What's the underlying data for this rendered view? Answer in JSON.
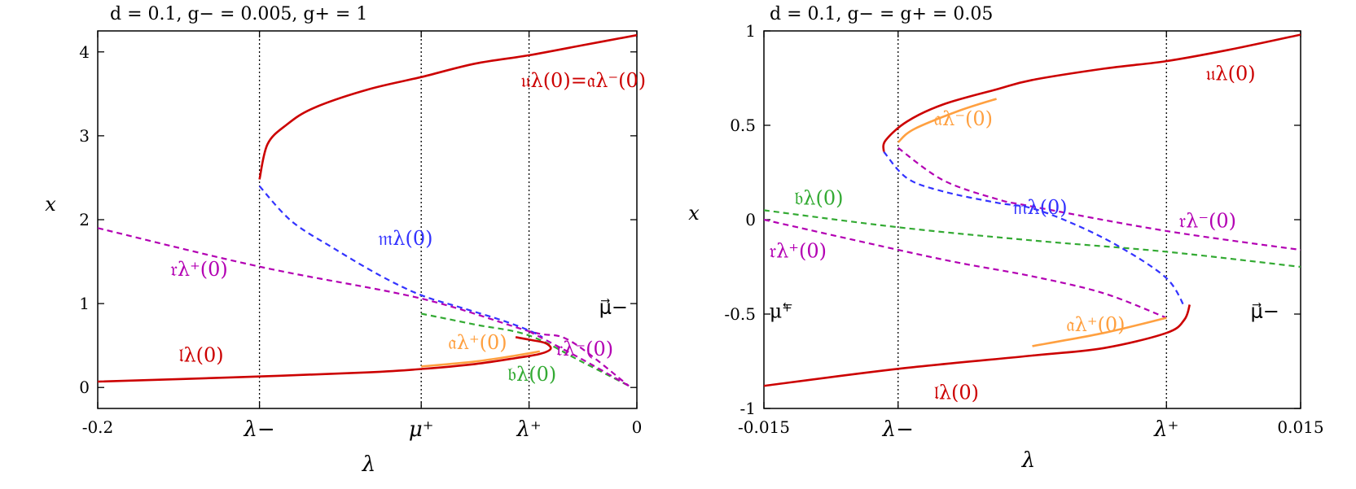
{
  "chart_data": [
    {
      "type": "line",
      "title": "d = 0.1, g− = 0.005, g+ = 1",
      "xlabel": "λ",
      "ylabel": "x",
      "xlim": [
        -0.2,
        0
      ],
      "ylim": [
        -0.25,
        4.25
      ],
      "x_ticks": [
        {
          "value": -0.2,
          "label": "-0.2"
        },
        {
          "value": -0.14,
          "label": "λ−"
        },
        {
          "value": -0.08,
          "label": "μ⁺"
        },
        {
          "value": -0.04,
          "label": "λ⁺"
        },
        {
          "value": 0,
          "label": "0"
        }
      ],
      "y_ticks": [
        {
          "value": 0,
          "label": "0"
        },
        {
          "value": 1,
          "label": "1"
        },
        {
          "value": 2,
          "label": "2"
        },
        {
          "value": 3,
          "label": "3"
        },
        {
          "value": 4,
          "label": "4"
        }
      ],
      "vlines": [
        -0.14,
        -0.08,
        -0.04
      ],
      "series": [
        {
          "key": "r_plus",
          "style": "dashed",
          "color": "#b300b3",
          "points": [
            [
              -0.2,
              1.9
            ],
            [
              -0.14,
              1.44
            ],
            [
              -0.08,
              1.06
            ],
            [
              -0.04,
              0.67
            ],
            [
              -0.025,
              0.56
            ],
            [
              -0.003,
              0.02
            ]
          ]
        },
        {
          "key": "m",
          "style": "dashed",
          "color": "#3333ff",
          "points": [
            [
              -0.14,
              2.4
            ],
            [
              -0.128,
              1.98
            ],
            [
              -0.112,
              1.65
            ],
            [
              -0.095,
              1.33
            ],
            [
              -0.08,
              1.1
            ],
            [
              -0.065,
              0.95
            ],
            [
              -0.05,
              0.8
            ],
            [
              -0.04,
              0.68
            ],
            [
              -0.035,
              0.6
            ]
          ]
        },
        {
          "key": "b",
          "style": "dashed",
          "color": "#33aa33",
          "points": [
            [
              -0.08,
              0.88
            ],
            [
              -0.06,
              0.75
            ],
            [
              -0.04,
              0.62
            ],
            [
              -0.02,
              0.3
            ],
            [
              -0.003,
              0.02
            ]
          ]
        },
        {
          "key": "r_minus",
          "style": "dashed",
          "color": "#b300b3",
          "points": [
            [
              -0.04,
              0.67
            ],
            [
              -0.02,
              0.33
            ],
            [
              -0.003,
              0.02
            ]
          ]
        },
        {
          "key": "u",
          "style": "solid",
          "color": "#cc0000",
          "points": [
            [
              -0.14,
              2.48
            ],
            [
              -0.137,
              2.9
            ],
            [
              -0.13,
              3.13
            ],
            [
              -0.12,
              3.33
            ],
            [
              -0.1,
              3.55
            ],
            [
              -0.08,
              3.7
            ],
            [
              -0.06,
              3.86
            ],
            [
              -0.04,
              3.96
            ],
            [
              -0.02,
              4.08
            ],
            [
              0.0,
              4.2
            ]
          ]
        },
        {
          "key": "a_plus",
          "style": "solid",
          "color": "#ffa040",
          "points": [
            [
              -0.08,
              0.25
            ],
            [
              -0.06,
              0.31
            ],
            [
              -0.045,
              0.38
            ],
            [
              -0.036,
              0.43
            ]
          ]
        },
        {
          "key": "l",
          "style": "solid",
          "color": "#cc0000",
          "points": [
            [
              -0.2,
              0.07
            ],
            [
              -0.15,
              0.12
            ],
            [
              -0.1,
              0.18
            ],
            [
              -0.08,
              0.22
            ],
            [
              -0.06,
              0.28
            ],
            [
              -0.045,
              0.35
            ],
            [
              -0.036,
              0.4
            ],
            [
              -0.032,
              0.46
            ],
            [
              -0.034,
              0.53
            ],
            [
              -0.04,
              0.57
            ],
            [
              -0.045,
              0.6
            ]
          ]
        }
      ],
      "labels": [
        {
          "key": "u",
          "text": "𝔲λ(0)=𝔞λ⁻(0)",
          "x": -0.043,
          "y": 3.58,
          "color": "#cc0000"
        },
        {
          "key": "m",
          "text": "𝔪λ(0)",
          "x": -0.096,
          "y": 1.7,
          "color": "#3333ff"
        },
        {
          "key": "r_plus",
          "text": "𝔯λ⁺(0)",
          "x": -0.173,
          "y": 1.33,
          "color": "#b300b3"
        },
        {
          "key": "l",
          "text": "𝔩λ(0)",
          "x": -0.17,
          "y": 0.31,
          "color": "#cc0000"
        },
        {
          "key": "a_plus",
          "text": "𝔞λ⁺(0)",
          "x": -0.07,
          "y": 0.46,
          "color": "#ffa040"
        },
        {
          "key": "r_minus",
          "text": "𝔯λ⁻(0)",
          "x": -0.03,
          "y": 0.38,
          "color": "#b300b3"
        },
        {
          "key": "b",
          "text": "𝔟λ(0)",
          "x": -0.048,
          "y": 0.08,
          "color": "#33aa33"
        },
        {
          "key": "mu_minus",
          "text": "μ⃗−",
          "x": -0.014,
          "y": 0.88,
          "color": "#000000"
        }
      ]
    },
    {
      "type": "line",
      "title": "d = 0.1, g− = g+ = 0.05",
      "xlabel": "λ",
      "ylabel": "x",
      "xlim": [
        -0.015,
        0.015
      ],
      "ylim": [
        -1,
        1
      ],
      "x_ticks": [
        {
          "value": -0.015,
          "label": "-0.015"
        },
        {
          "value": -0.0075,
          "label": "λ−"
        },
        {
          "value": 0.0075,
          "label": "λ⁺"
        },
        {
          "value": 0.015,
          "label": "0.015"
        }
      ],
      "y_ticks": [
        {
          "value": -1,
          "label": "-1"
        },
        {
          "value": -0.5,
          "label": "-0.5"
        },
        {
          "value": 0,
          "label": "0"
        },
        {
          "value": 0.5,
          "label": "0.5"
        },
        {
          "value": 1,
          "label": "1"
        }
      ],
      "vlines": [
        -0.0075,
        0.0075
      ],
      "series": [
        {
          "key": "b",
          "style": "dashed",
          "color": "#33aa33",
          "points": [
            [
              -0.015,
              0.05
            ],
            [
              -0.0075,
              -0.04
            ],
            [
              0,
              -0.11
            ],
            [
              0.0075,
              -0.17
            ],
            [
              0.015,
              -0.25
            ]
          ]
        },
        {
          "key": "r_plus",
          "style": "dashed",
          "color": "#b300b3",
          "points": [
            [
              -0.015,
              0.0
            ],
            [
              -0.0075,
              -0.16
            ],
            [
              -0.004,
              -0.23
            ],
            [
              0,
              -0.3
            ],
            [
              0.004,
              -0.39
            ],
            [
              0.0075,
              -0.52
            ]
          ]
        },
        {
          "key": "r_minus",
          "style": "dashed",
          "color": "#b300b3",
          "points": [
            [
              -0.0075,
              0.38
            ],
            [
              -0.005,
              0.21
            ],
            [
              -0.002,
              0.11
            ],
            [
              0.0,
              0.07
            ],
            [
              0.0075,
              -0.06
            ],
            [
              0.015,
              -0.16
            ]
          ]
        },
        {
          "key": "m",
          "style": "dashed",
          "color": "#3333ff",
          "points": [
            [
              -0.0083,
              0.36
            ],
            [
              -0.007,
              0.22
            ],
            [
              -0.005,
              0.15
            ],
            [
              -0.002,
              0.09
            ],
            [
              0.0,
              0.06
            ],
            [
              0.0025,
              -0.03
            ],
            [
              0.005,
              -0.15
            ],
            [
              0.0075,
              -0.31
            ],
            [
              0.0085,
              -0.46
            ]
          ]
        },
        {
          "key": "u",
          "style": "solid",
          "color": "#cc0000",
          "points": [
            [
              -0.0083,
              0.36
            ],
            [
              -0.0082,
              0.42
            ],
            [
              -0.007,
              0.52
            ],
            [
              -0.005,
              0.61
            ],
            [
              -0.002,
              0.69
            ],
            [
              0.0,
              0.74
            ],
            [
              0.004,
              0.8
            ],
            [
              0.0075,
              0.84
            ],
            [
              0.011,
              0.9
            ],
            [
              0.015,
              0.98
            ]
          ]
        },
        {
          "key": "a_minus",
          "style": "solid",
          "color": "#ffa040",
          "points": [
            [
              -0.0075,
              0.41
            ],
            [
              -0.0066,
              0.48
            ],
            [
              -0.004,
              0.58
            ],
            [
              -0.002,
              0.64
            ]
          ]
        },
        {
          "key": "a_plus",
          "style": "solid",
          "color": "#ffa040",
          "points": [
            [
              0.0,
              -0.67
            ],
            [
              0.004,
              -0.6
            ],
            [
              0.0075,
              -0.52
            ]
          ]
        },
        {
          "key": "l",
          "style": "solid",
          "color": "#cc0000",
          "points": [
            [
              -0.015,
              -0.88
            ],
            [
              -0.0075,
              -0.79
            ],
            [
              0.0,
              -0.72
            ],
            [
              0.004,
              -0.68
            ],
            [
              0.0075,
              -0.6
            ],
            [
              0.0085,
              -0.53
            ],
            [
              0.0088,
              -0.45
            ]
          ]
        }
      ],
      "labels": [
        {
          "key": "u",
          "text": "𝔲λ(0)",
          "x": 0.0097,
          "y": 0.74,
          "color": "#cc0000"
        },
        {
          "key": "a_minus",
          "text": "𝔞λ⁻(0)",
          "x": -0.0055,
          "y": 0.5,
          "color": "#ffa040"
        },
        {
          "key": "b",
          "text": "𝔟λ(0)",
          "x": -0.0133,
          "y": 0.08,
          "color": "#33aa33"
        },
        {
          "key": "m",
          "text": "𝔪λ(0)",
          "x": -0.0011,
          "y": 0.03,
          "color": "#3333ff"
        },
        {
          "key": "r_minus",
          "text": "𝔯λ⁻(0)",
          "x": 0.0082,
          "y": -0.04,
          "color": "#b300b3"
        },
        {
          "key": "r_plus",
          "text": "𝔯λ⁺(0)",
          "x": -0.0147,
          "y": -0.2,
          "color": "#b300b3"
        },
        {
          "key": "mu_plus",
          "text": "μ⁺⃖",
          "x": -0.0147,
          "y": -0.52,
          "color": "#000000"
        },
        {
          "key": "mu_minus",
          "text": "μ⃗−",
          "x": 0.0122,
          "y": -0.52,
          "color": "#000000"
        },
        {
          "key": "a_plus",
          "text": "𝔞λ⁺(0)",
          "x": 0.0019,
          "y": -0.59,
          "color": "#ffa040"
        },
        {
          "key": "l",
          "text": "𝔩λ(0)",
          "x": -0.0055,
          "y": -0.95,
          "color": "#cc0000"
        }
      ]
    }
  ]
}
